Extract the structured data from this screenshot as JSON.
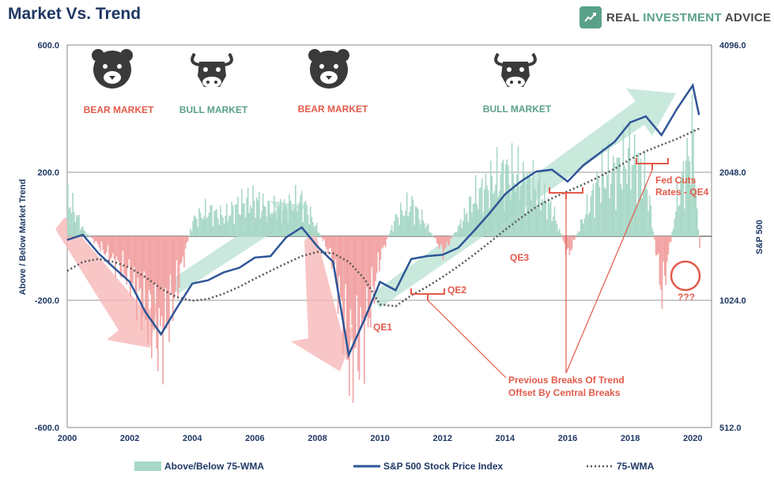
{
  "header": {
    "title": "Market Vs. Trend",
    "brand_plain": "REAL ",
    "brand_accent": "INVESTMENT",
    "brand_rest": " ADVICE",
    "brand_icon": "shield-chart-icon"
  },
  "colors": {
    "above_fill": "#a9d8c7",
    "below_fill": "#f2a3a3",
    "sp500_line": "#2e5597",
    "wma_line": "#555555",
    "bull_arrow": "#bde3d5",
    "bear_arrow": "#f7b8b8",
    "annotation": "#e25a4a",
    "bull_label": "#5aa188",
    "bear_label": "#e25a4a",
    "axis_text": "#1f3864"
  },
  "chart_data": {
    "type": "area",
    "title": "Market Vs. Trend",
    "xlabel": "",
    "ylabel": "Above / Below Market Trend",
    "y2label": "S&P 500",
    "xlim": [
      2000,
      2020.6
    ],
    "ylim": [
      -600,
      600
    ],
    "y2lim": [
      512,
      4096
    ],
    "y2scale": "log",
    "x_ticks": [
      "2000",
      "2002",
      "2004",
      "2006",
      "2008",
      "2010",
      "2012",
      "2014",
      "2016",
      "2018",
      "2020"
    ],
    "y_ticks": [
      "600.0",
      "200.0",
      "-200.0",
      "-600.0"
    ],
    "y2_ticks": [
      "4096.0",
      "2048.0",
      "1024.0",
      "512.0"
    ],
    "legend": [
      "Above/Below 75-WMA",
      "S&P 500 Stock Price Index",
      "75-WMA"
    ],
    "legend_position": "bottom",
    "x": [
      2000.0,
      2000.5,
      2001.0,
      2001.5,
      2002.0,
      2002.5,
      2003.0,
      2003.5,
      2004.0,
      2004.5,
      2005.0,
      2005.5,
      2006.0,
      2006.5,
      2007.0,
      2007.5,
      2008.0,
      2008.5,
      2009.0,
      2009.5,
      2010.0,
      2010.5,
      2011.0,
      2011.5,
      2012.0,
      2012.5,
      2013.0,
      2013.5,
      2014.0,
      2014.5,
      2015.0,
      2015.5,
      2016.0,
      2016.5,
      2017.0,
      2017.5,
      2018.0,
      2018.5,
      2019.0,
      2019.5,
      2020.0,
      2020.2
    ],
    "series": [
      {
        "name": "Above/Below 75-WMA",
        "values": [
          120,
          20,
          -30,
          -80,
          -130,
          -240,
          -320,
          -150,
          50,
          80,
          60,
          100,
          110,
          80,
          90,
          110,
          20,
          -80,
          -380,
          -300,
          -60,
          60,
          100,
          30,
          -50,
          30,
          120,
          160,
          200,
          180,
          150,
          80,
          -60,
          60,
          180,
          200,
          250,
          170,
          -180,
          120,
          310,
          -60
        ]
      },
      {
        "name": "S&P 500 Stock Price Index",
        "values": [
          1420,
          1460,
          1320,
          1220,
          1130,
          960,
          850,
          980,
          1120,
          1140,
          1190,
          1220,
          1290,
          1300,
          1440,
          1520,
          1370,
          1260,
          760,
          920,
          1130,
          1080,
          1280,
          1300,
          1310,
          1360,
          1490,
          1640,
          1820,
          1950,
          2060,
          2080,
          1950,
          2130,
          2270,
          2420,
          2690,
          2780,
          2510,
          2900,
          3290,
          2800
        ]
      },
      {
        "name": "75-WMA",
        "values": [
          1200,
          1260,
          1280,
          1260,
          1220,
          1160,
          1090,
          1040,
          1020,
          1030,
          1060,
          1100,
          1150,
          1200,
          1250,
          1300,
          1330,
          1320,
          1260,
          1150,
          1000,
          990,
          1050,
          1100,
          1160,
          1230,
          1310,
          1400,
          1500,
          1600,
          1700,
          1780,
          1850,
          1920,
          2000,
          2090,
          2200,
          2300,
          2380,
          2460,
          2560,
          2600
        ]
      }
    ],
    "annotations": [
      {
        "text": "BEAR MARKET",
        "x": 2002.0
      },
      {
        "text": "BULL MARKET",
        "x": 2004.9
      },
      {
        "text": "BEAR MARKET",
        "x": 2008.9
      },
      {
        "text": "BULL MARKET",
        "x": 2016.5
      },
      {
        "text": "QE1"
      },
      {
        "text": "QE2"
      },
      {
        "text": "QE3"
      },
      {
        "text": "Fed Cuts\nRates - QE4"
      },
      {
        "text": "???"
      },
      {
        "text": "Previous Breaks Of Trend\nOffset By Central Breaks"
      }
    ]
  }
}
